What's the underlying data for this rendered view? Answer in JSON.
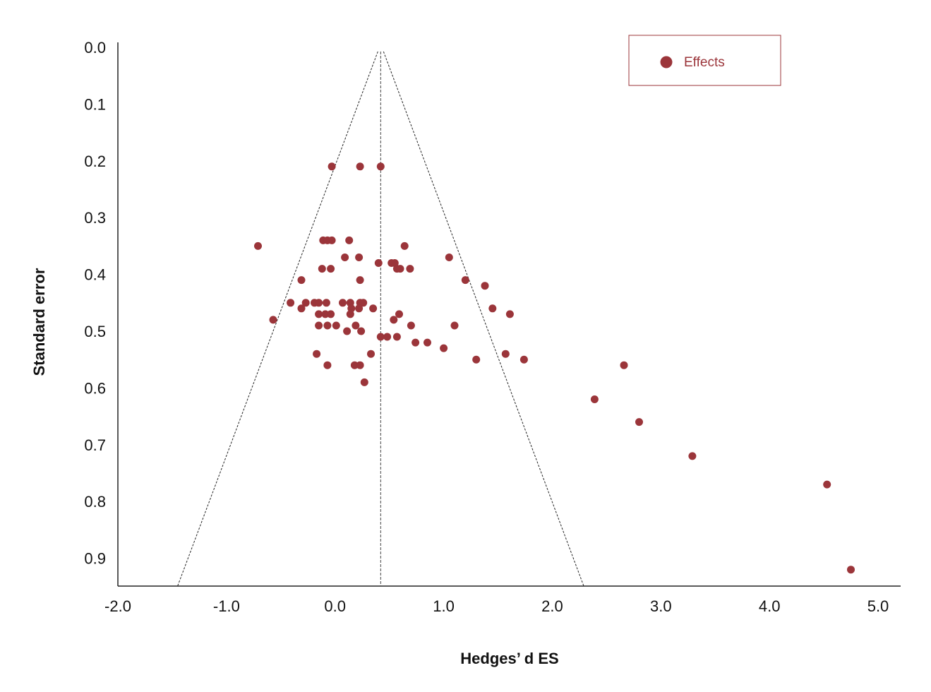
{
  "chart_data": {
    "type": "scatter",
    "title": "",
    "xlabel": "Hedges’ d ES",
    "ylabel": "Standard error",
    "xlim": [
      -2.0,
      5.0
    ],
    "ylim": [
      0.0,
      0.95
    ],
    "y_reversed": true,
    "x_ticks": [
      "-2.0",
      "-1.0",
      "0.0",
      "1.0",
      "2.0",
      "3.0",
      "4.0",
      "5.0"
    ],
    "x_tick_values": [
      -2,
      -1,
      0,
      1,
      2,
      3,
      4,
      5
    ],
    "y_ticks": [
      "0.0",
      "0.1",
      "0.2",
      "0.3",
      "0.4",
      "0.5",
      "0.6",
      "0.7",
      "0.8",
      "0.9"
    ],
    "y_tick_values": [
      0,
      0.1,
      0.2,
      0.3,
      0.4,
      0.5,
      0.6,
      0.7,
      0.8,
      0.9
    ],
    "grid": false,
    "legend_position": "top-right",
    "pooled_effect": 0.42,
    "funnel": {
      "apex": [
        0.42,
        0.0
      ],
      "base_left": [
        -1.45,
        0.95
      ],
      "base_right": [
        2.29,
        0.95
      ]
    },
    "series": [
      {
        "name": "Effects",
        "color": "#9b353a",
        "points": [
          [
            -0.03,
            0.21
          ],
          [
            0.23,
            0.21
          ],
          [
            0.42,
            0.21
          ],
          [
            -0.71,
            0.35
          ],
          [
            -0.57,
            0.48
          ],
          [
            -0.11,
            0.34
          ],
          [
            -0.07,
            0.34
          ],
          [
            -0.03,
            0.34
          ],
          [
            0.13,
            0.34
          ],
          [
            0.64,
            0.35
          ],
          [
            0.09,
            0.37
          ],
          [
            0.22,
            0.37
          ],
          [
            1.05,
            0.37
          ],
          [
            0.4,
            0.38
          ],
          [
            0.52,
            0.38
          ],
          [
            0.55,
            0.38
          ],
          [
            -0.12,
            0.39
          ],
          [
            -0.04,
            0.39
          ],
          [
            0.57,
            0.39
          ],
          [
            0.6,
            0.39
          ],
          [
            0.69,
            0.39
          ],
          [
            -0.31,
            0.41
          ],
          [
            0.23,
            0.41
          ],
          [
            1.2,
            0.41
          ],
          [
            1.38,
            0.42
          ],
          [
            -0.41,
            0.45
          ],
          [
            -0.27,
            0.45
          ],
          [
            -0.19,
            0.45
          ],
          [
            -0.15,
            0.45
          ],
          [
            -0.08,
            0.45
          ],
          [
            0.07,
            0.45
          ],
          [
            0.14,
            0.45
          ],
          [
            0.23,
            0.45
          ],
          [
            0.26,
            0.45
          ],
          [
            -0.31,
            0.46
          ],
          [
            0.15,
            0.46
          ],
          [
            0.22,
            0.46
          ],
          [
            0.35,
            0.46
          ],
          [
            1.45,
            0.46
          ],
          [
            -0.15,
            0.47
          ],
          [
            -0.09,
            0.47
          ],
          [
            -0.04,
            0.47
          ],
          [
            0.14,
            0.47
          ],
          [
            0.59,
            0.47
          ],
          [
            1.61,
            0.47
          ],
          [
            0.54,
            0.48
          ],
          [
            -0.15,
            0.49
          ],
          [
            -0.07,
            0.49
          ],
          [
            0.01,
            0.49
          ],
          [
            0.19,
            0.49
          ],
          [
            0.7,
            0.49
          ],
          [
            1.1,
            0.49
          ],
          [
            0.11,
            0.5
          ],
          [
            0.24,
            0.5
          ],
          [
            0.42,
            0.51
          ],
          [
            0.48,
            0.51
          ],
          [
            0.57,
            0.51
          ],
          [
            0.74,
            0.52
          ],
          [
            0.85,
            0.52
          ],
          [
            1.0,
            0.53
          ],
          [
            -0.17,
            0.54
          ],
          [
            0.33,
            0.54
          ],
          [
            1.57,
            0.54
          ],
          [
            1.3,
            0.55
          ],
          [
            1.74,
            0.55
          ],
          [
            -0.07,
            0.56
          ],
          [
            0.18,
            0.56
          ],
          [
            0.23,
            0.56
          ],
          [
            2.66,
            0.56
          ],
          [
            0.27,
            0.59
          ],
          [
            2.39,
            0.62
          ],
          [
            2.8,
            0.66
          ],
          [
            3.29,
            0.72
          ],
          [
            4.53,
            0.77
          ],
          [
            4.75,
            0.92
          ]
        ]
      }
    ]
  }
}
